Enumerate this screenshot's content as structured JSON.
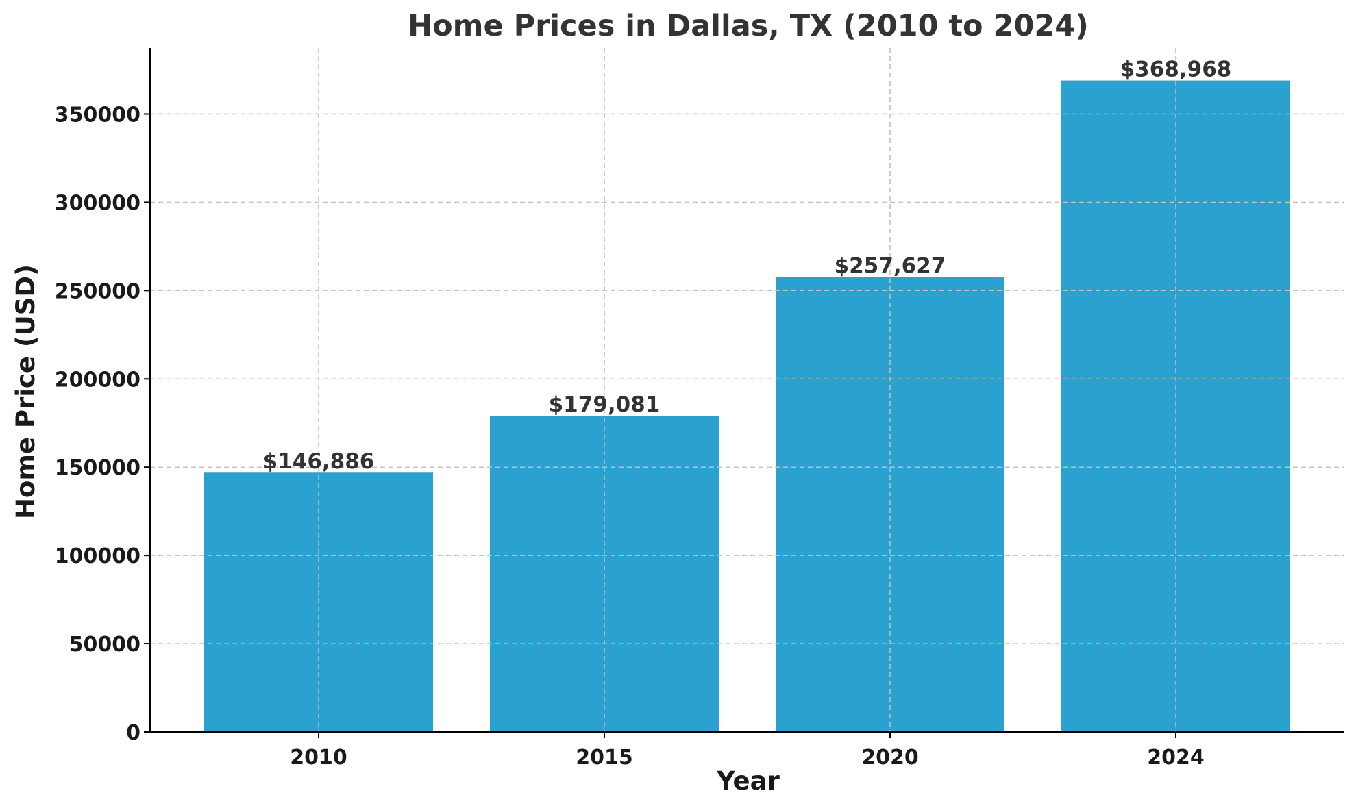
{
  "chart_data": {
    "type": "bar",
    "title": "Home Prices in Dallas, TX (2010 to 2024)",
    "xlabel": "Year",
    "ylabel": "Home Price (USD)",
    "categories": [
      "2010",
      "2015",
      "2020",
      "2024"
    ],
    "values": [
      146886,
      179081,
      257627,
      368968
    ],
    "data_labels": [
      "$146,886",
      "$179,081",
      "$257,627",
      "$368,968"
    ],
    "ylim": [
      0,
      387416
    ],
    "yticks": [
      0,
      50000,
      100000,
      150000,
      200000,
      250000,
      300000,
      350000
    ],
    "ytick_labels": [
      "0",
      "50000",
      "100000",
      "150000",
      "200000",
      "250000",
      "300000",
      "350000"
    ],
    "grid": true,
    "bar_color": "#2ba1cf"
  }
}
